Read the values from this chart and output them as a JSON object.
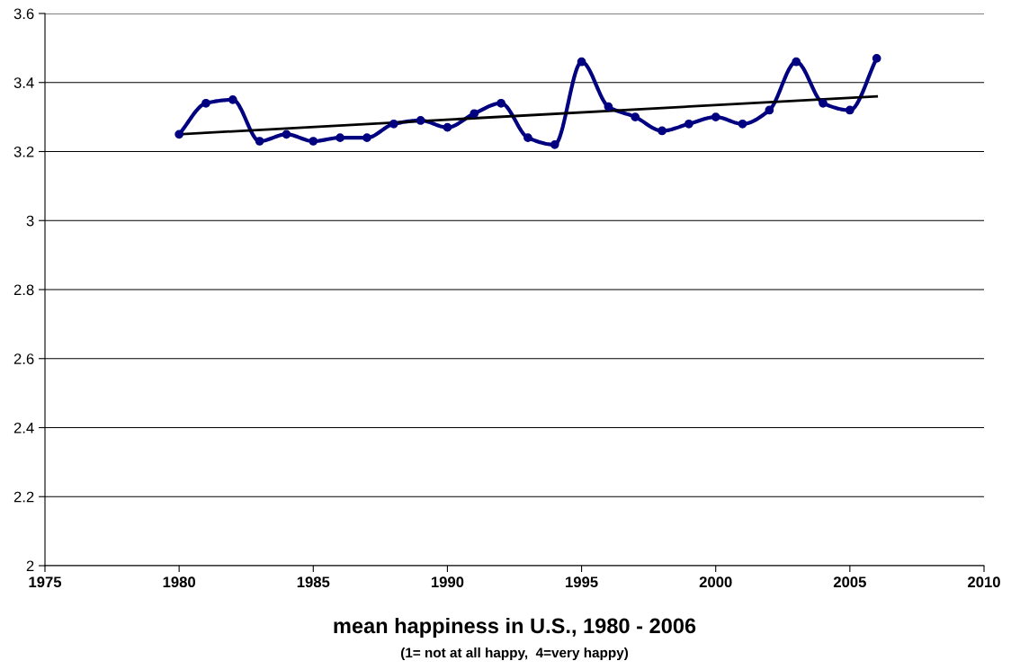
{
  "chart_data": {
    "type": "line",
    "xlabel": "mean happiness in U.S., 1980 - 2006",
    "subtitle": "(1= not at all happy,  4=very happy)",
    "x": [
      1980,
      1981,
      1982,
      1983,
      1984,
      1985,
      1986,
      1987,
      1988,
      1989,
      1990,
      1991,
      1992,
      1993,
      1994,
      1995,
      1996,
      1997,
      1998,
      1999,
      2000,
      2001,
      2002,
      2003,
      2004,
      2005,
      2006
    ],
    "series": [
      {
        "color": "#000080",
        "marker": "circle",
        "values": [
          3.25,
          3.34,
          3.35,
          3.23,
          3.25,
          3.23,
          3.24,
          3.24,
          3.28,
          3.29,
          3.27,
          3.31,
          3.34,
          3.24,
          3.22,
          3.46,
          3.33,
          3.3,
          3.26,
          3.28,
          3.3,
          3.28,
          3.32,
          3.46,
          3.34,
          3.32,
          3.47
        ]
      },
      {
        "type": "line",
        "color": "#000000",
        "marker": "none",
        "x": [
          1980,
          2006
        ],
        "values": [
          3.25,
          3.36
        ]
      }
    ],
    "xlim": [
      1975,
      2010
    ],
    "xticks": [
      1975,
      1980,
      1985,
      1990,
      1995,
      2000,
      2005,
      2010
    ],
    "ylim": [
      2,
      3.6
    ],
    "yticks": [
      2,
      2.2,
      2.4,
      2.6,
      2.8,
      3,
      3.2,
      3.4,
      3.6
    ],
    "grid": "y",
    "legend": false
  }
}
